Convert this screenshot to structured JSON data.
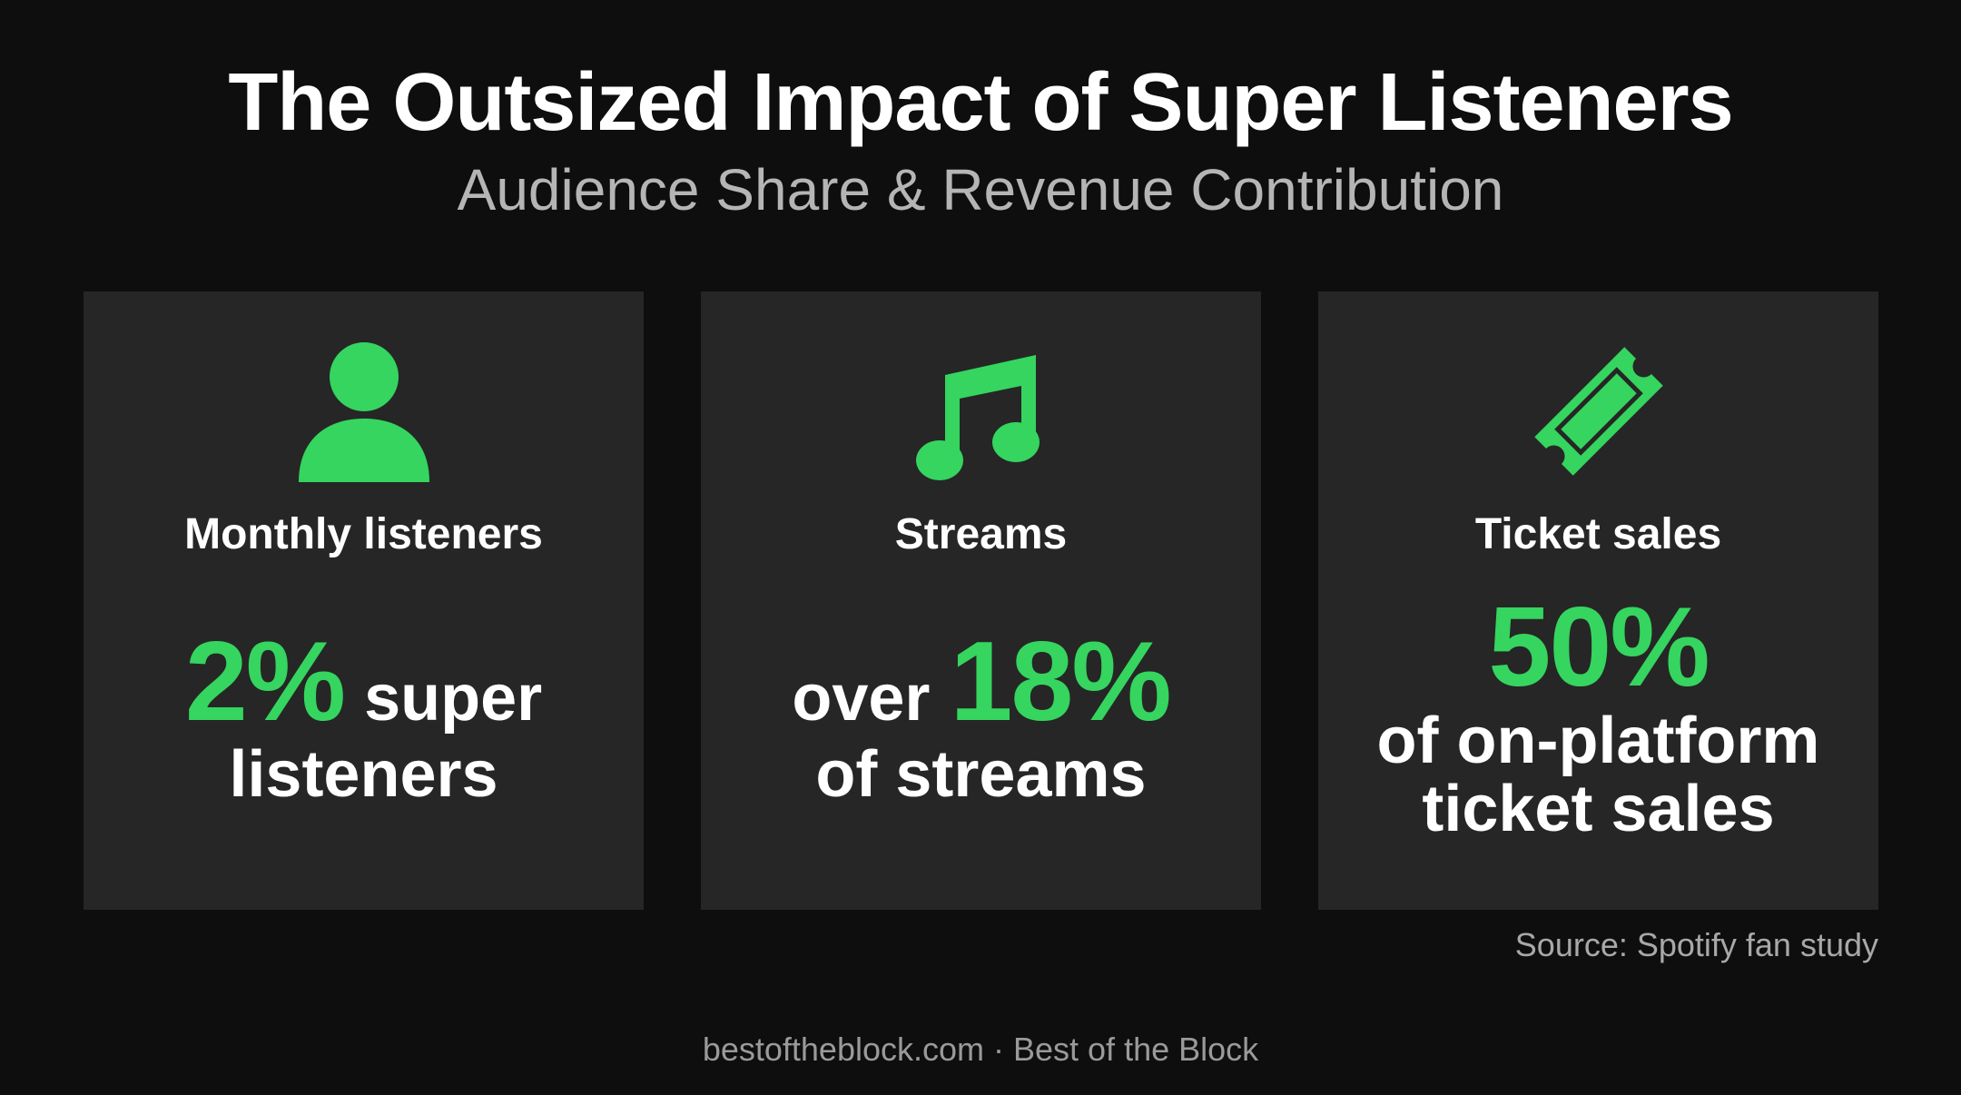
{
  "header": {
    "title": "The Outsized Impact of Super Listeners",
    "subtitle": "Audience Share & Revenue Contribution"
  },
  "cards": [
    {
      "label": "Monthly listeners",
      "lines": [
        [
          {
            "text": "2%",
            "accent": true
          },
          {
            "text": "super",
            "accent": false
          }
        ],
        [
          {
            "text": "listeners",
            "accent": false
          }
        ]
      ]
    },
    {
      "label": "Streams",
      "lines": [
        [
          {
            "text": "over",
            "accent": false
          },
          {
            "text": "18%",
            "accent": true
          }
        ],
        [
          {
            "text": "of streams",
            "accent": false
          }
        ]
      ]
    },
    {
      "label": "Ticket sales",
      "lines": [
        [
          {
            "text": "50%",
            "accent": true
          }
        ],
        [
          {
            "text": "of on-platform",
            "accent": false
          }
        ],
        [
          {
            "text": "ticket sales",
            "accent": false
          }
        ]
      ]
    }
  ],
  "source": "Source: Spotify fan study",
  "footer": "bestoftheblock.com · Best of the Block"
}
